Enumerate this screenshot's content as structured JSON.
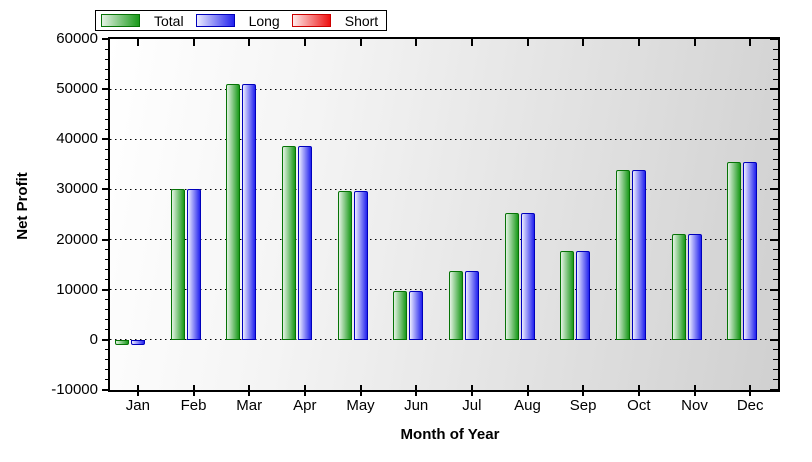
{
  "chart_data": {
    "type": "bar",
    "title": "",
    "xlabel": "Month of Year",
    "ylabel": "Net Profit",
    "categories": [
      "Jan",
      "Feb",
      "Mar",
      "Apr",
      "May",
      "Jun",
      "Jul",
      "Aug",
      "Sep",
      "Oct",
      "Nov",
      "Dec"
    ],
    "series": [
      {
        "name": "Total",
        "values": [
          -1100,
          30000,
          51000,
          38700,
          29600,
          9800,
          13700,
          25300,
          17700,
          33900,
          21100,
          35500
        ],
        "border": "#067306",
        "fill_main": "#1a9a1a",
        "fill_light": "#e4f2e4"
      },
      {
        "name": "Long",
        "values": [
          -1100,
          30000,
          51000,
          38700,
          29600,
          9800,
          13700,
          25300,
          17700,
          33900,
          21100,
          35500
        ],
        "border": "#0000bb",
        "fill_main": "#2222ee",
        "fill_light": "#ececff"
      },
      {
        "name": "Short",
        "values": [
          0,
          0,
          0,
          0,
          0,
          0,
          0,
          0,
          0,
          0,
          0,
          0
        ],
        "border": "#cc0000",
        "fill_main": "#ee1111",
        "fill_light": "#ffeaea"
      }
    ],
    "ylim": [
      -10000,
      60000
    ],
    "ytick_step": 10000,
    "yminor_step": 2000,
    "ytick_labels": [
      "-10000",
      "0",
      "10000",
      "20000",
      "30000",
      "40000",
      "50000",
      "60000"
    ],
    "grid": "horizontal dotted lines at major y ticks",
    "legend_position": "top-left",
    "plot_bg_gradient": [
      "#ffffff",
      "#d0d0d0"
    ],
    "axis_color": "#000000",
    "gridline_color": "#000000"
  }
}
